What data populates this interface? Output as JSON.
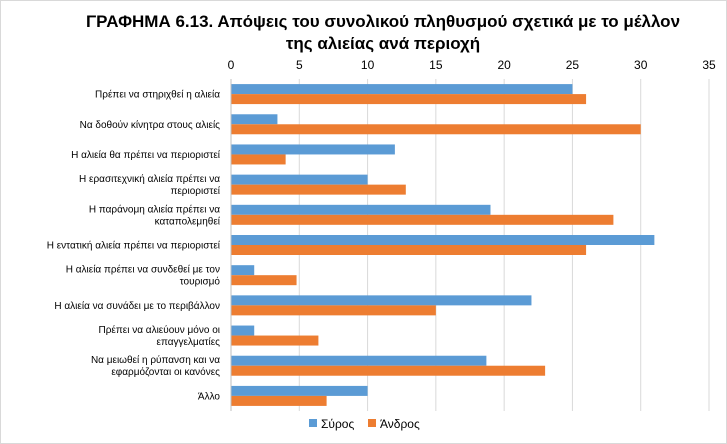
{
  "chart_data": {
    "type": "bar",
    "orientation": "horizontal",
    "title": [
      "ΓΡΑΦΗΜΑ 6.13. Απόψεις του συνολικού πληθυσμού σχετικά με το μέλλον",
      "της αλιείας ανά περιοχή"
    ],
    "xlabel": "",
    "ylabel": "",
    "xlim": [
      0,
      35
    ],
    "x_ticks": [
      0,
      5,
      10,
      15,
      20,
      25,
      30,
      35
    ],
    "x_axis_position": "top",
    "grid": true,
    "legend_position": "bottom",
    "categories": [
      [
        "Πρέπει να στηριχθεί η αλιεία"
      ],
      [
        "Να δοθούν κίνητρα στους αλιείς"
      ],
      [
        "Η αλιεία θα πρέπει να περιοριστεί"
      ],
      [
        "Η ερασιτεχνική αλιεία πρέπει να",
        "περιοριστεί"
      ],
      [
        "Η παράνομη αλιεία πρέπει να",
        "καταπολεμηθεί"
      ],
      [
        "Η εντατική αλιεία πρέπει να περιοριστεί"
      ],
      [
        "Η αλιεία πρέπει να συνδεθεί με τον",
        "τουρισμό"
      ],
      [
        "Η αλιεία να συνάδει με το περιβάλλον"
      ],
      [
        "Πρέπει να αλιεύουν μόνο οι",
        "επαγγελματίες"
      ],
      [
        "Να μειωθεί η ρύπανση και να",
        "εφαρμόζονται οι κανόνες"
      ],
      [
        "Άλλο"
      ]
    ],
    "series": [
      {
        "name": "Σύρος",
        "color": "#5B9BD5",
        "values": [
          25,
          3.4,
          12,
          10,
          19,
          31,
          1.7,
          22,
          1.7,
          18.7,
          10
        ]
      },
      {
        "name": "Άνδρος",
        "color": "#ED7D31",
        "values": [
          26,
          30,
          4,
          12.8,
          28,
          26,
          4.8,
          15,
          6.4,
          23,
          7
        ]
      }
    ]
  }
}
